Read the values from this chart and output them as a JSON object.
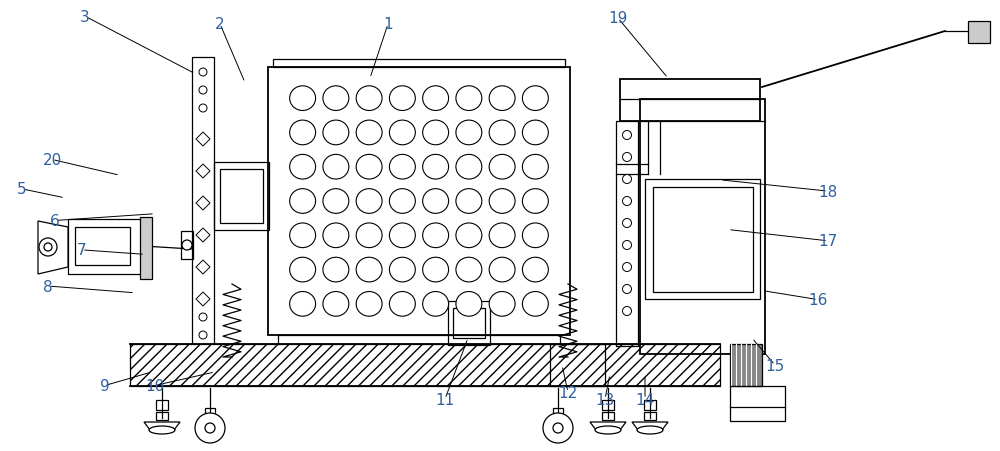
{
  "bg_color": "#ffffff",
  "line_color": "#000000",
  "label_color": "#3060a0",
  "figsize": [
    10.0,
    4.52
  ],
  "dpi": 100,
  "label_fontsize": 11,
  "labels_info": [
    [
      1,
      0.388,
      0.055,
      0.37,
      0.175
    ],
    [
      2,
      0.22,
      0.055,
      0.245,
      0.185
    ],
    [
      3,
      0.085,
      0.038,
      0.195,
      0.165
    ],
    [
      5,
      0.022,
      0.42,
      0.065,
      0.44
    ],
    [
      6,
      0.055,
      0.49,
      0.155,
      0.475
    ],
    [
      7,
      0.082,
      0.555,
      0.145,
      0.565
    ],
    [
      8,
      0.048,
      0.635,
      0.135,
      0.65
    ],
    [
      9,
      0.105,
      0.855,
      0.152,
      0.825
    ],
    [
      10,
      0.155,
      0.855,
      0.215,
      0.825
    ],
    [
      11,
      0.445,
      0.885,
      0.468,
      0.75
    ],
    [
      12,
      0.568,
      0.87,
      0.562,
      0.81
    ],
    [
      13,
      0.605,
      0.885,
      0.61,
      0.83
    ],
    [
      14,
      0.645,
      0.885,
      0.645,
      0.83
    ],
    [
      15,
      0.775,
      0.81,
      0.752,
      0.75
    ],
    [
      16,
      0.818,
      0.665,
      0.762,
      0.645
    ],
    [
      17,
      0.828,
      0.535,
      0.728,
      0.51
    ],
    [
      18,
      0.828,
      0.425,
      0.72,
      0.4
    ],
    [
      19,
      0.618,
      0.042,
      0.668,
      0.175
    ],
    [
      20,
      0.052,
      0.355,
      0.12,
      0.39
    ]
  ]
}
